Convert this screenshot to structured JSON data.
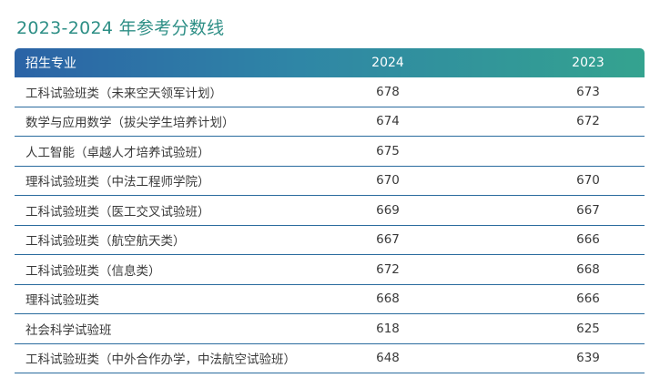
{
  "title": "2023-2024 年参考分数线",
  "table": {
    "headers": {
      "major": "招生专业",
      "y2024": "2024",
      "y2023": "2023"
    },
    "rows": [
      {
        "major": "工科试验班类（未来空天领军计划）",
        "y2024": "678",
        "y2023": "673"
      },
      {
        "major": "数学与应用数学（拔尖学生培养计划）",
        "y2024": "674",
        "y2023": "672"
      },
      {
        "major": "人工智能（卓越人才培养试验班）",
        "y2024": "675",
        "y2023": ""
      },
      {
        "major": "理科试验班类（中法工程师学院）",
        "y2024": "670",
        "y2023": "670"
      },
      {
        "major": "工科试验班类（医工交叉试验班）",
        "y2024": "669",
        "y2023": "667"
      },
      {
        "major": "工科试验班类（航空航天类）",
        "y2024": "667",
        "y2023": "666"
      },
      {
        "major": "工科试验班类（信息类）",
        "y2024": "672",
        "y2023": "668"
      },
      {
        "major": "理科试验班类",
        "y2024": "668",
        "y2023": "666"
      },
      {
        "major": "社会科学试验班",
        "y2024": "618",
        "y2023": "625"
      },
      {
        "major": "工科试验班类（中外合作办学，中法航空试验班）",
        "y2024": "648",
        "y2023": "639"
      }
    ]
  },
  "colors": {
    "title": "#2e8f86",
    "header_start": "#2b63a6",
    "header_end": "#34a38f",
    "row_divider": "#2a6b9e"
  }
}
